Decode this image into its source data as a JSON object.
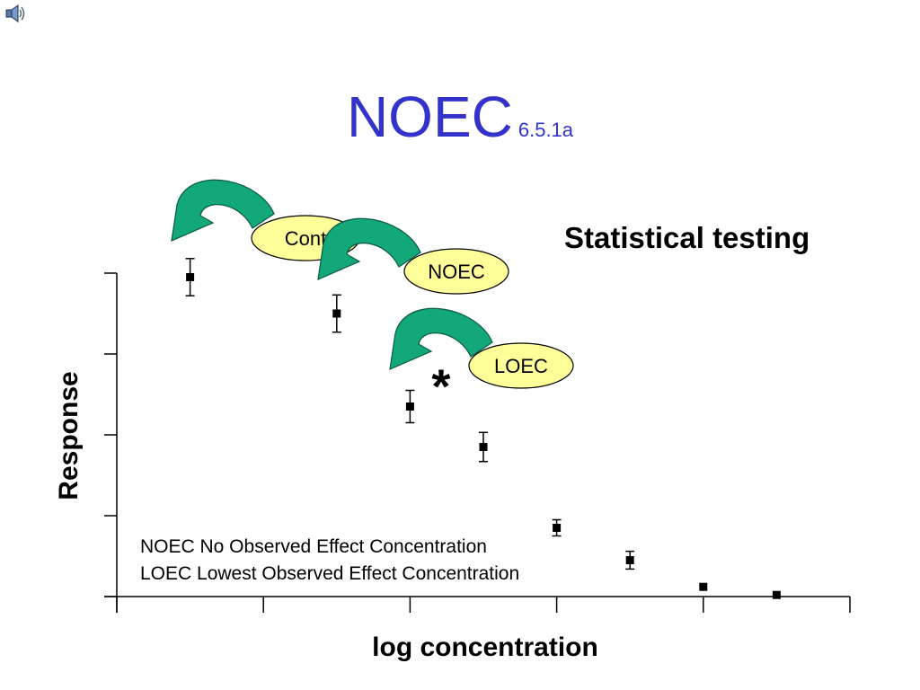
{
  "slide": {
    "title": "NOEC",
    "title_suffix": "6.5.1a",
    "heading": "Statistical testing",
    "colors": {
      "title": "#3333cc",
      "arrow": "#13a87a",
      "bubble": "#ffff99"
    },
    "icon": "speaker-icon"
  },
  "legend": {
    "line1": "NOEC No Observed Effect Concentration",
    "line2": "LOEC Lowest Observed Effect Concentration"
  },
  "chart_data": {
    "type": "scatter",
    "xlabel": "log concentration",
    "ylabel": "Response",
    "x": [
      0.5,
      1.5,
      2.0,
      2.5,
      3.0,
      3.5,
      4.0,
      4.5
    ],
    "y": [
      3.95,
      3.5,
      2.35,
      1.85,
      0.85,
      0.45,
      0.12,
      0.02
    ],
    "error": [
      0.23,
      0.23,
      0.2,
      0.18,
      0.1,
      0.11,
      0,
      0
    ],
    "xlim": [
      0,
      5
    ],
    "ylim": [
      0,
      4
    ],
    "x_ticks": 6,
    "y_ticks": 5,
    "grid": false,
    "annotations": [
      {
        "text": "Control",
        "point_index": 0,
        "visible_text": "Cont"
      },
      {
        "text": "NOEC",
        "point_index": 1
      },
      {
        "text": "LOEC",
        "point_index": 2
      },
      {
        "text": "*",
        "point_index": 2
      }
    ]
  }
}
